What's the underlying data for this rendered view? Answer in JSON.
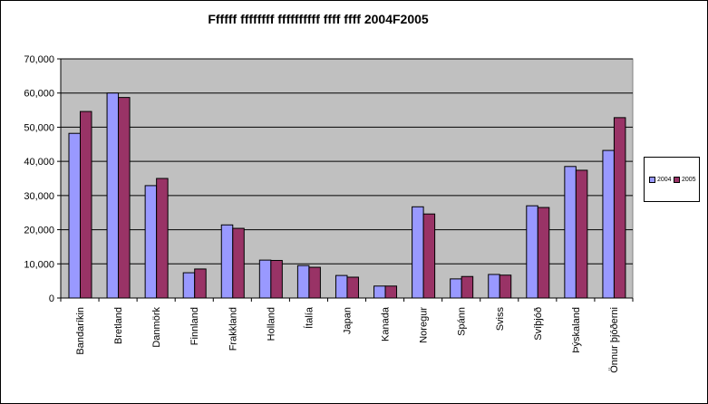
{
  "chart_data": {
    "type": "bar",
    "title": "Ffffff ffffffff ffffffffff ffff ffff 2004F2005",
    "xlabel": "",
    "ylabel": "",
    "ylim": [
      0,
      70000
    ],
    "yticks": [
      "0",
      "10,000",
      "20,000",
      "30,000",
      "40,000",
      "50,000",
      "60,000",
      "70,000"
    ],
    "grid": true,
    "legend_position": "right",
    "categories": [
      "Bandaríkin",
      "Bretland",
      "Danmörk",
      "Finnland",
      "Frakkland",
      "Holland",
      "Ítalía",
      "Japan",
      "Kanada",
      "Noregur",
      "Spánn",
      "Sviss",
      "Svíþjóð",
      "Þýskaland",
      "Önnur þjóðerni"
    ],
    "series": [
      {
        "name": "2004",
        "color": "#9999ff",
        "values": [
          48200,
          60000,
          32900,
          7400,
          21400,
          11100,
          9500,
          6600,
          3500,
          26700,
          5600,
          6900,
          27000,
          38500,
          43200
        ]
      },
      {
        "name": "2005",
        "color": "#993366",
        "values": [
          54600,
          58700,
          35000,
          8500,
          20400,
          11000,
          9000,
          6100,
          3500,
          24600,
          6300,
          6700,
          26500,
          37400,
          52800
        ]
      }
    ],
    "plot_background": "#c0c0c0"
  }
}
